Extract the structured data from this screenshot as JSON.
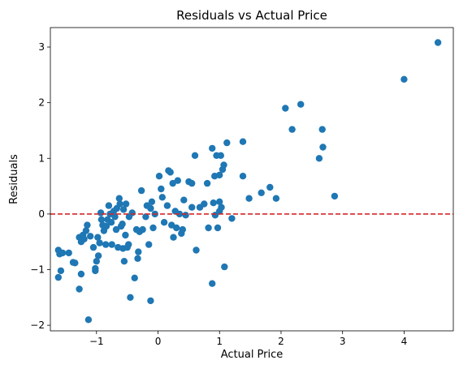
{
  "chart_data": {
    "type": "scatter",
    "title": "Residuals vs Actual Price",
    "xlabel": "Actual Price",
    "ylabel": "Residuals",
    "xlim": [
      -1.75,
      4.8
    ],
    "ylim": [
      -2.1,
      3.35
    ],
    "xticks": [
      -1,
      0,
      1,
      2,
      3,
      4
    ],
    "yticks": [
      -2,
      -1,
      0,
      1,
      2,
      3
    ],
    "xtick_labels": [
      "−1",
      "0",
      "1",
      "2",
      "3",
      "4"
    ],
    "ytick_labels": [
      "−2",
      "−1",
      "0",
      "1",
      "2",
      "3"
    ],
    "grid": false,
    "legend": "none",
    "reference_line": {
      "y": 0,
      "style": "dashed",
      "color": "#d62728"
    },
    "marker_color": "#1f77b4",
    "points": [
      {
        "x": -1.62,
        "y": -0.65
      },
      {
        "x": -1.6,
        "y": -0.72
      },
      {
        "x": -1.58,
        "y": -1.02
      },
      {
        "x": -1.62,
        "y": -1.14
      },
      {
        "x": -1.55,
        "y": -0.7
      },
      {
        "x": -1.45,
        "y": -0.7
      },
      {
        "x": -1.38,
        "y": -0.87
      },
      {
        "x": -1.35,
        "y": -0.88
      },
      {
        "x": -1.28,
        "y": -1.35
      },
      {
        "x": -1.25,
        "y": -1.08
      },
      {
        "x": -1.28,
        "y": -0.42
      },
      {
        "x": -1.25,
        "y": -0.5
      },
      {
        "x": -1.22,
        "y": -0.38
      },
      {
        "x": -1.2,
        "y": -0.45
      },
      {
        "x": -1.17,
        "y": -0.3
      },
      {
        "x": -1.15,
        "y": -0.2
      },
      {
        "x": -1.13,
        "y": -1.9
      },
      {
        "x": -1.1,
        "y": -0.4
      },
      {
        "x": -1.05,
        "y": -0.6
      },
      {
        "x": -1.02,
        "y": -0.98
      },
      {
        "x": -1.02,
        "y": -1.02
      },
      {
        "x": -1.0,
        "y": -0.85
      },
      {
        "x": -0.98,
        "y": -0.42
      },
      {
        "x": -0.97,
        "y": -0.75
      },
      {
        "x": -0.95,
        "y": -0.52
      },
      {
        "x": -0.93,
        "y": 0.02
      },
      {
        "x": -0.92,
        "y": -0.1
      },
      {
        "x": -0.9,
        "y": -0.2
      },
      {
        "x": -0.88,
        "y": -0.3
      },
      {
        "x": -0.85,
        "y": -0.55
      },
      {
        "x": -0.84,
        "y": -0.22
      },
      {
        "x": -0.82,
        "y": -0.1
      },
      {
        "x": -0.8,
        "y": 0.15
      },
      {
        "x": -0.78,
        "y": 0.0
      },
      {
        "x": -0.76,
        "y": -0.15
      },
      {
        "x": -0.75,
        "y": -0.55
      },
      {
        "x": -0.72,
        "y": 0.05
      },
      {
        "x": -0.7,
        "y": -0.05
      },
      {
        "x": -0.68,
        "y": -0.28
      },
      {
        "x": -0.67,
        "y": 0.1
      },
      {
        "x": -0.65,
        "y": -0.6
      },
      {
        "x": -0.63,
        "y": 0.28
      },
      {
        "x": -0.62,
        "y": 0.18
      },
      {
        "x": -0.6,
        "y": -0.22
      },
      {
        "x": -0.58,
        "y": -0.18
      },
      {
        "x": -0.57,
        "y": -0.62
      },
      {
        "x": -0.56,
        "y": 0.08
      },
      {
        "x": -0.55,
        "y": -0.85
      },
      {
        "x": -0.53,
        "y": -0.38
      },
      {
        "x": -0.52,
        "y": 0.18
      },
      {
        "x": -0.5,
        "y": -0.6
      },
      {
        "x": -0.48,
        "y": -0.55
      },
      {
        "x": -0.47,
        "y": -0.05
      },
      {
        "x": -0.45,
        "y": -1.5
      },
      {
        "x": -0.42,
        "y": 0.02
      },
      {
        "x": -0.38,
        "y": -1.15
      },
      {
        "x": -0.35,
        "y": -0.28
      },
      {
        "x": -0.33,
        "y": -0.8
      },
      {
        "x": -0.32,
        "y": -0.68
      },
      {
        "x": -0.3,
        "y": -0.32
      },
      {
        "x": -0.27,
        "y": 0.42
      },
      {
        "x": -0.25,
        "y": -0.28
      },
      {
        "x": -0.2,
        "y": -0.05
      },
      {
        "x": -0.18,
        "y": 0.15
      },
      {
        "x": -0.15,
        "y": -0.55
      },
      {
        "x": -0.12,
        "y": -1.56
      },
      {
        "x": -0.12,
        "y": 0.1
      },
      {
        "x": -0.1,
        "y": 0.22
      },
      {
        "x": -0.08,
        "y": -0.25
      },
      {
        "x": -0.05,
        "y": 0.0
      },
      {
        "x": 0.02,
        "y": 0.68
      },
      {
        "x": 0.05,
        "y": 0.45
      },
      {
        "x": 0.07,
        "y": 0.3
      },
      {
        "x": 0.1,
        "y": -0.15
      },
      {
        "x": 0.15,
        "y": 0.15
      },
      {
        "x": 0.17,
        "y": 0.78
      },
      {
        "x": 0.2,
        "y": 0.75
      },
      {
        "x": 0.22,
        "y": -0.2
      },
      {
        "x": 0.24,
        "y": 0.55
      },
      {
        "x": 0.25,
        "y": -0.42
      },
      {
        "x": 0.28,
        "y": 0.05
      },
      {
        "x": 0.3,
        "y": -0.25
      },
      {
        "x": 0.32,
        "y": 0.6
      },
      {
        "x": 0.35,
        "y": 0.0
      },
      {
        "x": 0.38,
        "y": -0.35
      },
      {
        "x": 0.4,
        "y": -0.28
      },
      {
        "x": 0.42,
        "y": 0.25
      },
      {
        "x": 0.45,
        "y": -0.02
      },
      {
        "x": 0.5,
        "y": 0.58
      },
      {
        "x": 0.55,
        "y": 0.12
      },
      {
        "x": 0.55,
        "y": 0.55
      },
      {
        "x": 0.6,
        "y": 1.05
      },
      {
        "x": 0.62,
        "y": -0.65
      },
      {
        "x": 0.68,
        "y": 0.12
      },
      {
        "x": 0.75,
        "y": 0.18
      },
      {
        "x": 0.8,
        "y": 0.55
      },
      {
        "x": 0.82,
        "y": -0.25
      },
      {
        "x": 0.88,
        "y": 1.18
      },
      {
        "x": 0.9,
        "y": 0.2
      },
      {
        "x": 0.92,
        "y": 0.68
      },
      {
        "x": 0.93,
        "y": -0.02
      },
      {
        "x": 0.95,
        "y": 1.05
      },
      {
        "x": 0.97,
        "y": -0.25
      },
      {
        "x": 1.0,
        "y": 0.7
      },
      {
        "x": 1.0,
        "y": 0.05
      },
      {
        "x": 1.0,
        "y": 0.22
      },
      {
        "x": 1.02,
        "y": 1.05
      },
      {
        "x": 1.03,
        "y": 0.12
      },
      {
        "x": 1.05,
        "y": 0.8
      },
      {
        "x": 1.07,
        "y": 0.88
      },
      {
        "x": 1.08,
        "y": -0.95
      },
      {
        "x": 1.12,
        "y": 1.28
      },
      {
        "x": 1.2,
        "y": -0.08
      },
      {
        "x": 0.88,
        "y": -1.25
      },
      {
        "x": 1.38,
        "y": 1.3
      },
      {
        "x": 1.38,
        "y": 0.68
      },
      {
        "x": 1.48,
        "y": 0.28
      },
      {
        "x": 1.68,
        "y": 0.38
      },
      {
        "x": 1.82,
        "y": 0.48
      },
      {
        "x": 1.92,
        "y": 0.28
      },
      {
        "x": 2.07,
        "y": 1.9
      },
      {
        "x": 2.18,
        "y": 1.52
      },
      {
        "x": 2.32,
        "y": 1.97
      },
      {
        "x": 2.62,
        "y": 1.0
      },
      {
        "x": 2.67,
        "y": 1.52
      },
      {
        "x": 2.68,
        "y": 1.2
      },
      {
        "x": 2.87,
        "y": 0.32
      },
      {
        "x": 4.0,
        "y": 2.42
      },
      {
        "x": 4.55,
        "y": 3.08
      }
    ]
  }
}
